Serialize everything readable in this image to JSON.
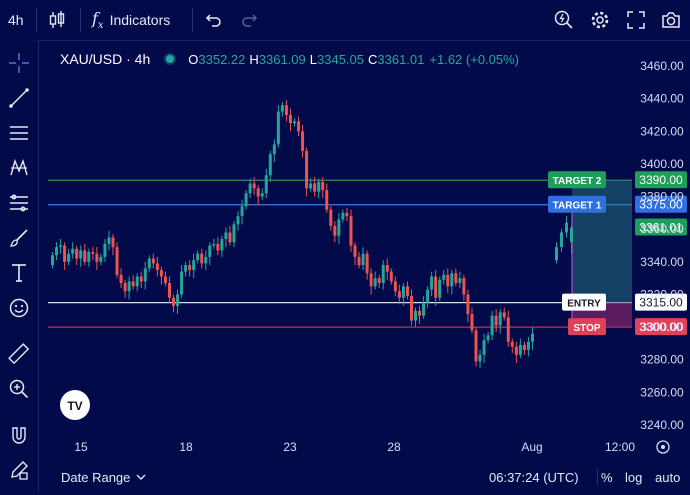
{
  "toolbar": {
    "interval": "4h",
    "indicators_label": "Indicators"
  },
  "legend": {
    "symbol": "XAU/USD · 4h",
    "o_label": "O",
    "o_value": "3352.22",
    "h_label": "H",
    "h_value": "3361.09",
    "l_label": "L",
    "l_value": "3345.05",
    "c_label": "C",
    "c_value": "3361.01",
    "change": "+1.62 (+0.05%)"
  },
  "chart_data": {
    "type": "candlestick",
    "ylim": [
      3240,
      3460
    ],
    "y_ticks": [
      "3460.00",
      "3440.00",
      "3420.00",
      "3400.00",
      "3380.00",
      "3360.00",
      "3340.00",
      "3320.00",
      "3300.00",
      "3280.00",
      "3260.00",
      "3240.00"
    ],
    "y_tick_values": [
      3460,
      3440,
      3420,
      3400,
      3380,
      3360,
      3340,
      3320,
      3300,
      3280,
      3260,
      3240
    ],
    "x_ticks": [
      "15",
      "18",
      "23",
      "28",
      "Aug",
      "12:00"
    ],
    "levels": [
      {
        "name": "TARGET 2",
        "price": 3390.0,
        "price_label": "3390.00",
        "color": "#1e9e5a"
      },
      {
        "name": "TARGET 1",
        "price": 3375.0,
        "price_label": "3375.00",
        "color": "#2f6fe0"
      },
      {
        "name": "ENTRY",
        "price": 3315.0,
        "price_label": "3315.00",
        "color": "#ffffff"
      },
      {
        "name": "STOP",
        "price": 3300.0,
        "price_label": "3300.00",
        "color": "#e0405a"
      }
    ],
    "last_price": {
      "price": 3361.01,
      "label": "3361.01"
    },
    "colors": {
      "up": "#26a69a",
      "down": "#ef5350",
      "line_up": "#1e9e5a"
    }
  },
  "bottom": {
    "date_range": "Date Range",
    "time": "06:37:24 (UTC)",
    "percent": "%",
    "log": "log",
    "auto": "auto"
  }
}
